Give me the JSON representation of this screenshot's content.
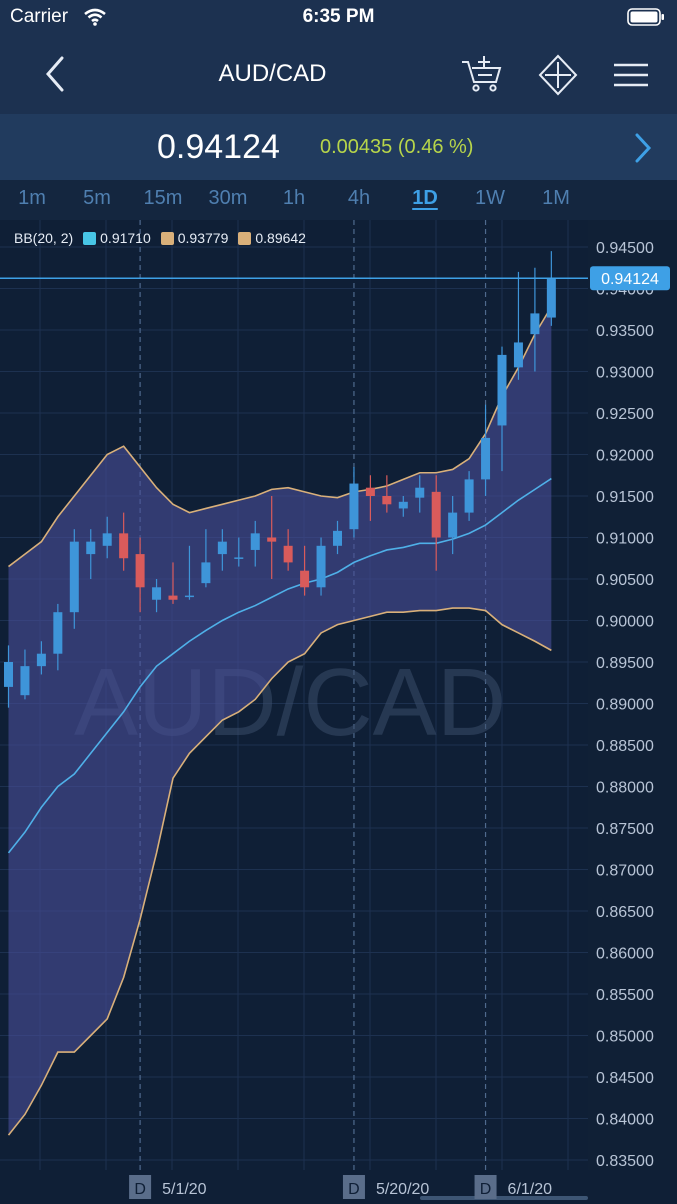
{
  "status": {
    "carrier": "Carrier",
    "time": "6:35 PM"
  },
  "nav": {
    "title": "AUD/CAD"
  },
  "quote": {
    "price": "0.94124",
    "change": "0.00435 (0.46 %)"
  },
  "timeframes": [
    "1m",
    "5m",
    "15m",
    "30m",
    "1h",
    "4h",
    "1D",
    "1W",
    "1M"
  ],
  "active_timeframe": "1D",
  "legend": {
    "label": "BB(20, 2)",
    "mid": "0.91710",
    "upper": "0.93779",
    "lower": "0.89642"
  },
  "watermark": "AUD/CAD",
  "colors": {
    "background": "#0f1f36",
    "band_fill": "#4a4f9a",
    "band_line": "#d9b07a",
    "mid_line": "#4fb0e8",
    "up_candle": "#3e95d9",
    "down_candle": "#d95b5b",
    "price_line": "#3ea0e6",
    "change_text": "#b7d54a"
  },
  "chart_data": {
    "type": "candlestick",
    "ylim": [
      0.833,
      0.946
    ],
    "y_ticks": [
      "0.94500",
      "0.94000",
      "0.93500",
      "0.93000",
      "0.92500",
      "0.92000",
      "0.91500",
      "0.91000",
      "0.90500",
      "0.90000",
      "0.89500",
      "0.89000",
      "0.88500",
      "0.88000",
      "0.87500",
      "0.87000",
      "0.86500",
      "0.86000",
      "0.85500",
      "0.85000",
      "0.84500",
      "0.84000",
      "0.83500"
    ],
    "last_price_label": "0.94124",
    "last_price": 0.94124,
    "x_labels": [
      {
        "marker": "D",
        "date": "5/1/20",
        "index": 8
      },
      {
        "marker": "D",
        "date": "5/20/20",
        "index": 21
      },
      {
        "marker": "D",
        "date": "6/1/20",
        "index": 29
      }
    ],
    "candles": [
      {
        "o": 0.892,
        "h": 0.897,
        "l": 0.8895,
        "c": 0.895
      },
      {
        "o": 0.891,
        "h": 0.8965,
        "l": 0.8905,
        "c": 0.8945
      },
      {
        "o": 0.8945,
        "h": 0.8975,
        "l": 0.8935,
        "c": 0.896
      },
      {
        "o": 0.896,
        "h": 0.902,
        "l": 0.894,
        "c": 0.901
      },
      {
        "o": 0.901,
        "h": 0.911,
        "l": 0.899,
        "c": 0.9095
      },
      {
        "o": 0.908,
        "h": 0.911,
        "l": 0.905,
        "c": 0.9095
      },
      {
        "o": 0.909,
        "h": 0.9125,
        "l": 0.9075,
        "c": 0.9105
      },
      {
        "o": 0.9105,
        "h": 0.913,
        "l": 0.906,
        "c": 0.9075
      },
      {
        "o": 0.908,
        "h": 0.91,
        "l": 0.901,
        "c": 0.904
      },
      {
        "o": 0.9025,
        "h": 0.905,
        "l": 0.901,
        "c": 0.904
      },
      {
        "o": 0.903,
        "h": 0.907,
        "l": 0.902,
        "c": 0.9025
      },
      {
        "o": 0.903,
        "h": 0.909,
        "l": 0.9025,
        "c": 0.903
      },
      {
        "o": 0.9045,
        "h": 0.911,
        "l": 0.904,
        "c": 0.907
      },
      {
        "o": 0.908,
        "h": 0.911,
        "l": 0.906,
        "c": 0.9095
      },
      {
        "o": 0.9075,
        "h": 0.91,
        "l": 0.9065,
        "c": 0.9076
      },
      {
        "o": 0.9085,
        "h": 0.912,
        "l": 0.9065,
        "c": 0.9105
      },
      {
        "o": 0.91,
        "h": 0.915,
        "l": 0.905,
        "c": 0.9095
      },
      {
        "o": 0.909,
        "h": 0.911,
        "l": 0.906,
        "c": 0.907
      },
      {
        "o": 0.906,
        "h": 0.909,
        "l": 0.903,
        "c": 0.904
      },
      {
        "o": 0.904,
        "h": 0.91,
        "l": 0.903,
        "c": 0.909
      },
      {
        "o": 0.909,
        "h": 0.912,
        "l": 0.908,
        "c": 0.9108
      },
      {
        "o": 0.911,
        "h": 0.9185,
        "l": 0.91,
        "c": 0.9165
      },
      {
        "o": 0.916,
        "h": 0.9175,
        "l": 0.912,
        "c": 0.915
      },
      {
        "o": 0.915,
        "h": 0.9175,
        "l": 0.913,
        "c": 0.914
      },
      {
        "o": 0.9135,
        "h": 0.915,
        "l": 0.9125,
        "c": 0.9143
      },
      {
        "o": 0.9148,
        "h": 0.9175,
        "l": 0.913,
        "c": 0.916
      },
      {
        "o": 0.9155,
        "h": 0.9175,
        "l": 0.906,
        "c": 0.91
      },
      {
        "o": 0.91,
        "h": 0.915,
        "l": 0.908,
        "c": 0.913
      },
      {
        "o": 0.913,
        "h": 0.918,
        "l": 0.912,
        "c": 0.917
      },
      {
        "o": 0.917,
        "h": 0.926,
        "l": 0.915,
        "c": 0.922
      },
      {
        "o": 0.9235,
        "h": 0.933,
        "l": 0.918,
        "c": 0.932
      },
      {
        "o": 0.9305,
        "h": 0.942,
        "l": 0.929,
        "c": 0.9335
      },
      {
        "o": 0.9345,
        "h": 0.9425,
        "l": 0.93,
        "c": 0.937
      },
      {
        "o": 0.9365,
        "h": 0.9445,
        "l": 0.9355,
        "c": 0.9412
      }
    ],
    "bb_upper": [
      0.9065,
      0.908,
      0.9095,
      0.9125,
      0.915,
      0.9175,
      0.92,
      0.921,
      0.9185,
      0.916,
      0.914,
      0.913,
      0.9135,
      0.914,
      0.9145,
      0.915,
      0.9158,
      0.916,
      0.9155,
      0.915,
      0.9148,
      0.9155,
      0.9158,
      0.9162,
      0.917,
      0.9178,
      0.9178,
      0.9182,
      0.9195,
      0.9225,
      0.927,
      0.9305,
      0.9345,
      0.9378
    ],
    "bb_mid": [
      0.872,
      0.8745,
      0.8775,
      0.88,
      0.8815,
      0.884,
      0.8865,
      0.889,
      0.892,
      0.8945,
      0.896,
      0.8975,
      0.8988,
      0.9,
      0.901,
      0.9018,
      0.9028,
      0.9038,
      0.9045,
      0.905,
      0.9058,
      0.907,
      0.9078,
      0.9085,
      0.9088,
      0.9093,
      0.9093,
      0.9098,
      0.9105,
      0.9115,
      0.913,
      0.9145,
      0.9158,
      0.9171
    ],
    "bb_lower": [
      0.838,
      0.8405,
      0.844,
      0.848,
      0.848,
      0.85,
      0.852,
      0.857,
      0.864,
      0.872,
      0.881,
      0.884,
      0.886,
      0.888,
      0.889,
      0.8905,
      0.893,
      0.895,
      0.896,
      0.8985,
      0.8995,
      0.9,
      0.9005,
      0.901,
      0.901,
      0.9012,
      0.9012,
      0.9015,
      0.9015,
      0.9012,
      0.8995,
      0.8985,
      0.8975,
      0.8964
    ]
  }
}
